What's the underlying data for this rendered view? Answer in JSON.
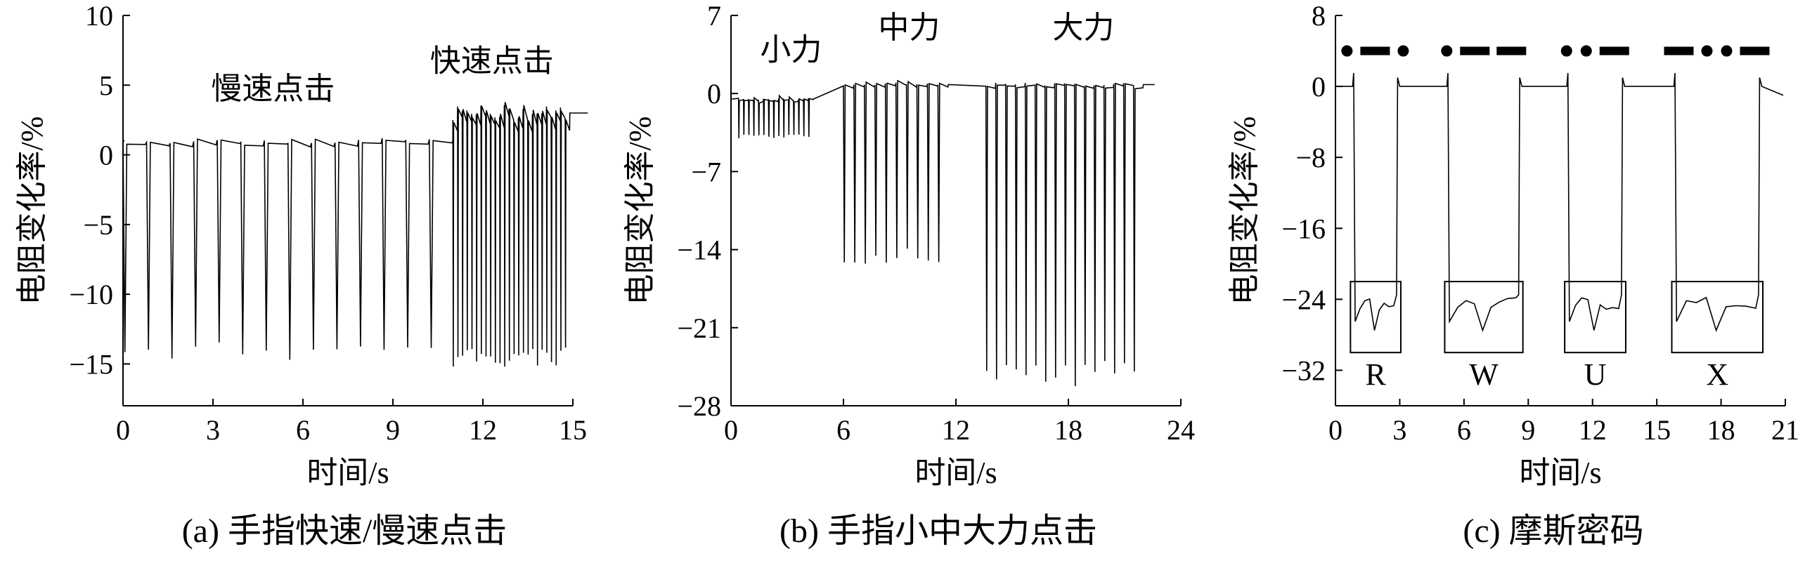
{
  "chart_data": [
    {
      "type": "line",
      "caption": "(a) 手指快速/慢速点击",
      "xlabel": "时间/s",
      "ylabel": "电阻变化率/%",
      "xlim": [
        0,
        15
      ],
      "ylim": [
        -18,
        10
      ],
      "xticks": [
        "0",
        "3",
        "6",
        "9",
        "12",
        "15"
      ],
      "yticks": [
        "10",
        "5",
        "0",
        "-5",
        "-10",
        "-15"
      ],
      "annotations": [
        {
          "text": "慢速点击",
          "x": 5.0,
          "y": 4.0
        },
        {
          "text": "快速点击",
          "x": 12.3,
          "y": 6.0
        }
      ],
      "segments": [
        {
          "start": 0.0,
          "end": 11.0,
          "clicks": 14,
          "baseline": 1.0,
          "peak": -14.5
        },
        {
          "start": 11.0,
          "end": 14.9,
          "clicks": 25,
          "baseline": 3.0,
          "peak": -15.0
        }
      ]
    },
    {
      "type": "line",
      "caption": "(b) 手指小中大力点击",
      "xlabel": "时间/s",
      "ylabel": "电阻变化率/%",
      "xlim": [
        0,
        24
      ],
      "ylim": [
        -28,
        7
      ],
      "xticks": [
        "0",
        "6",
        "12",
        "18",
        "24"
      ],
      "yticks": [
        "7",
        "0",
        "-7",
        "-14",
        "-21",
        "-28"
      ],
      "annotations": [
        {
          "text": "小力",
          "x": 3.2,
          "y": 3.0
        },
        {
          "text": "中力",
          "x": 9.5,
          "y": 5.0
        },
        {
          "text": "大力",
          "x": 18.8,
          "y": 5.0
        }
      ],
      "segments": [
        {
          "start": 0.4,
          "end": 4.4,
          "clicks": 15,
          "baseline": -0.5,
          "peak": -4.0
        },
        {
          "start": 6.0,
          "end": 11.6,
          "clicks": 10,
          "baseline": 0.8,
          "peak": -15.0
        },
        {
          "start": 13.6,
          "end": 22.0,
          "clicks": 16,
          "baseline": 0.8,
          "peak": -26.0
        }
      ]
    },
    {
      "type": "line",
      "caption": "(c) 摩斯密码",
      "xlabel": "时间/s",
      "ylabel": "电阻变化率/%",
      "xlim": [
        0,
        21
      ],
      "ylim": [
        -36,
        8
      ],
      "xticks": [
        "0",
        "3",
        "6",
        "9",
        "12",
        "15",
        "18",
        "21"
      ],
      "yticks": [
        "8",
        "0",
        "-8",
        "-16",
        "-24",
        "-32"
      ],
      "letters": [
        {
          "label": "R",
          "code": "•▬•",
          "start": 0.8,
          "end": 2.9
        },
        {
          "label": "W",
          "code": "•▬▬",
          "start": 5.2,
          "end": 8.6
        },
        {
          "label": "U",
          "code": "••▬",
          "start": 10.8,
          "end": 13.4
        },
        {
          "label": "X",
          "code": "▬••▬",
          "start": 15.8,
          "end": 19.8
        }
      ],
      "baseline": 0.0,
      "pressed_level": -24.5
    }
  ]
}
